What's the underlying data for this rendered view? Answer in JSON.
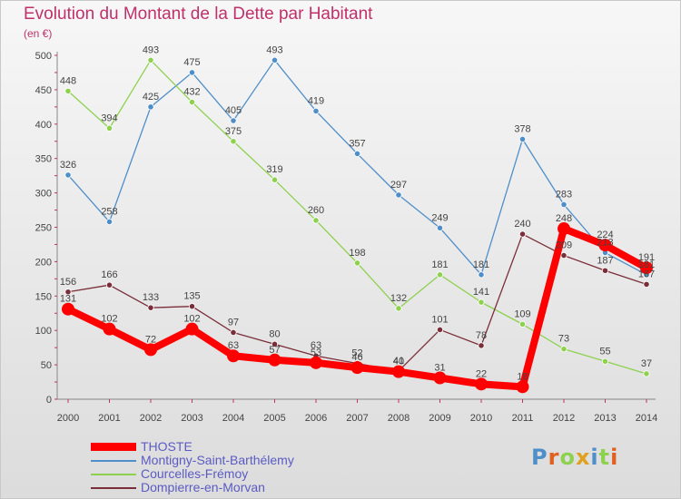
{
  "title": "Evolution du Montant de la Dette par Habitant",
  "unit_label": "(en €)",
  "logo_text": "Proxiti",
  "chart_data": {
    "type": "line",
    "title": "Evolution du Montant de la Dette par Habitant",
    "ylabel": "(en €)",
    "x": [
      "2000",
      "2001",
      "2002",
      "2003",
      "2004",
      "2005",
      "2006",
      "2007",
      "2008",
      "2009",
      "2010",
      "2011",
      "2012",
      "2013",
      "2014"
    ],
    "ylim": [
      0,
      500
    ],
    "yticks": [
      0,
      50,
      100,
      150,
      200,
      250,
      300,
      350,
      400,
      450,
      500
    ],
    "grid": false,
    "legend_position": "bottom-left",
    "series": [
      {
        "name": "Montigny-Saint-Barthélemy",
        "color": "#4f8fc9",
        "values": [
          326,
          258,
          425,
          475,
          405,
          493,
          419,
          357,
          297,
          249,
          181,
          378,
          283,
          213,
          181
        ]
      },
      {
        "name": "Courcelles-Frémoy",
        "color": "#8ed14f",
        "values": [
          448,
          394,
          493,
          432,
          375,
          319,
          260,
          198,
          132,
          181,
          141,
          109,
          73,
          55,
          37
        ]
      },
      {
        "name": "Dompierre-en-Morvan",
        "color": "#7a2e3a",
        "values": [
          156,
          166,
          133,
          135,
          97,
          80,
          63,
          52,
          41,
          101,
          78,
          240,
          209,
          187,
          167
        ]
      },
      {
        "name": "THOSTE",
        "color": "#ff0000",
        "values": [
          131,
          102,
          72,
          102,
          63,
          57,
          53,
          46,
          40,
          31,
          22,
          18,
          248,
          224,
          191
        ]
      }
    ],
    "legend_order": [
      "THOSTE",
      "Montigny-Saint-Barthélemy",
      "Courcelles-Frémoy",
      "Dompierre-en-Morvan"
    ]
  }
}
